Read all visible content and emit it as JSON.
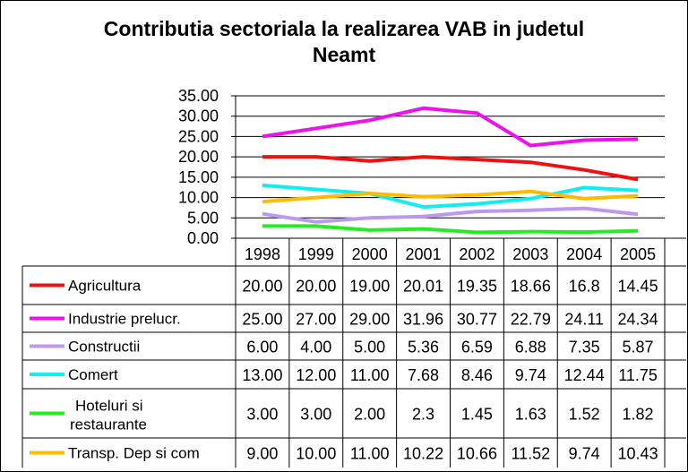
{
  "chart_data": {
    "type": "line",
    "title": "Contributia sectoriala la realizarea VAB in judetul Neamt",
    "title_lines": [
      "Contributia sectoriala la realizarea VAB in judetul",
      "Neamt"
    ],
    "categories": [
      "1998",
      "1999",
      "2000",
      "2001",
      "2002",
      "2003",
      "2004",
      "2005"
    ],
    "ylim": [
      0,
      35
    ],
    "yticks": [
      "0.00",
      "5.00",
      "10.00",
      "15.00",
      "20.00",
      "25.00",
      "30.00",
      "35.00"
    ],
    "grid": true,
    "legend": "data-table",
    "series": [
      {
        "name": "Agricultura",
        "color": "#ee1111",
        "values": [
          20.0,
          20.0,
          19.0,
          20.01,
          19.35,
          18.66,
          16.8,
          14.45
        ],
        "labels": [
          "20.00",
          "20.00",
          "19.00",
          "20.01",
          "19.35",
          "18.66",
          "16.8",
          "14.45"
        ]
      },
      {
        "name": "Industrie prelucr.",
        "color": "#ee11ee",
        "values": [
          25.0,
          27.0,
          29.0,
          31.96,
          30.77,
          22.79,
          24.11,
          24.34
        ],
        "labels": [
          "25.00",
          "27.00",
          "29.00",
          "31.96",
          "30.77",
          "22.79",
          "24.11",
          "24.34"
        ]
      },
      {
        "name": "Constructii",
        "color": "#bb99ee",
        "values": [
          6.0,
          4.0,
          5.0,
          5.36,
          6.59,
          6.88,
          7.35,
          5.87
        ],
        "labels": [
          "6.00",
          "4.00",
          "5.00",
          "5.36",
          "6.59",
          "6.88",
          "7.35",
          "5.87"
        ]
      },
      {
        "name": "Comert",
        "color": "#11eeee",
        "values": [
          13.0,
          12.0,
          11.0,
          7.68,
          8.46,
          9.74,
          12.44,
          11.75
        ],
        "labels": [
          "13.00",
          "12.00",
          "11.00",
          "7.68",
          "8.46",
          "9.74",
          "12.44",
          "11.75"
        ]
      },
      {
        "name": "Hoteluri si restaurante",
        "name_lines": [
          "Hoteluri si",
          "restaurante"
        ],
        "color": "#22ee22",
        "values": [
          3.0,
          3.0,
          2.0,
          2.3,
          1.45,
          1.63,
          1.52,
          1.82
        ],
        "labels": [
          "3.00",
          "3.00",
          "2.00",
          "2.3",
          "1.45",
          "1.63",
          "1.52",
          "1.82"
        ]
      },
      {
        "name": "Transp. Dep si com",
        "color": "#ffbb00",
        "values": [
          9.0,
          10.0,
          11.0,
          10.22,
          10.66,
          11.52,
          9.74,
          10.43
        ],
        "labels": [
          "9.00",
          "10.00",
          "11.00",
          "10.22",
          "10.66",
          "11.52",
          "9.74",
          "10.43"
        ]
      }
    ]
  }
}
